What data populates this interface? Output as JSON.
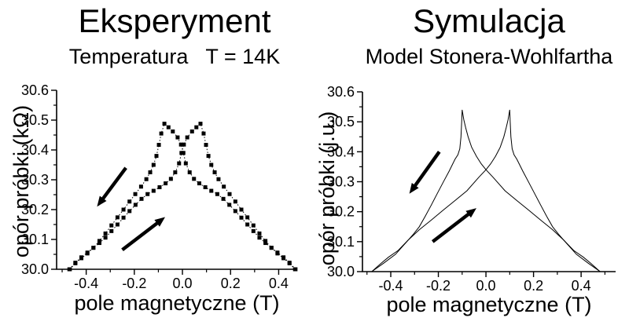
{
  "figure": {
    "background": "#ffffff",
    "foreground": "#000000"
  },
  "experiment": {
    "title": "Eksperyment",
    "subtitle": "Temperatura   T = 14K",
    "xlabel": "pole magnetyczne (T)",
    "ylabel": "opór próbki (kΩ)"
  },
  "simulation": {
    "title": "Symulacja",
    "subtitle": "Model Stonera-Wohlfartha",
    "xlabel": "pole magnetyczne (T)",
    "ylabel": "opór próbki (j.u.)"
  },
  "chart_data": [
    {
      "id": "experiment",
      "type": "line",
      "title": "Eksperyment",
      "subtitle": "Temperatura   T = 14K",
      "xlabel": "pole magnetyczne (T)",
      "ylabel": "opór próbki (kΩ)",
      "xlim": [
        -0.523,
        0.477
      ],
      "ylim": [
        30.0,
        30.6
      ],
      "x_major_ticks": [
        -0.4,
        -0.2,
        0.0,
        0.2,
        0.4
      ],
      "x_tick_labels": [
        "-0.4",
        "-0.2",
        "0.0",
        "0.2",
        "0.4"
      ],
      "y_major_ticks": [
        30.0,
        30.1,
        30.2,
        30.3,
        30.4,
        30.5,
        30.6
      ],
      "y_tick_labels": [
        "30.0",
        "30.1",
        "30.2",
        "30.3",
        "30.4",
        "30.5",
        "30.6"
      ],
      "x_minor_step": 0.1,
      "y_minor_step": 0.05,
      "grid": false,
      "line_color": "#000000",
      "marker": "square",
      "line_dotted": true,
      "series": [
        {
          "name": "sweep-up",
          "points": [
            [
              -0.47,
              30.0
            ],
            [
              -0.445,
              30.022
            ],
            [
              -0.42,
              30.04
            ],
            [
              -0.395,
              30.056
            ],
            [
              -0.37,
              30.072
            ],
            [
              -0.345,
              30.088
            ],
            [
              -0.32,
              30.106
            ],
            [
              -0.295,
              30.128
            ],
            [
              -0.27,
              30.15
            ],
            [
              -0.245,
              30.173
            ],
            [
              -0.22,
              30.195
            ],
            [
              -0.195,
              30.216
            ],
            [
              -0.17,
              30.236
            ],
            [
              -0.145,
              30.252
            ],
            [
              -0.12,
              30.263
            ],
            [
              -0.095,
              30.275
            ],
            [
              -0.07,
              30.288
            ],
            [
              -0.048,
              30.303
            ],
            [
              -0.03,
              30.325
            ],
            [
              -0.014,
              30.355
            ],
            [
              -0.004,
              30.39
            ],
            [
              0.006,
              30.418
            ],
            [
              0.02,
              30.442
            ],
            [
              0.04,
              30.462
            ],
            [
              0.058,
              30.476
            ],
            [
              0.075,
              30.488
            ],
            [
              0.088,
              30.455
            ],
            [
              0.098,
              30.417
            ],
            [
              0.108,
              30.38
            ],
            [
              0.12,
              30.35
            ],
            [
              0.134,
              30.325
            ],
            [
              0.15,
              30.302
            ],
            [
              0.172,
              30.277
            ],
            [
              0.196,
              30.252
            ],
            [
              0.22,
              30.227
            ],
            [
              0.245,
              30.2
            ],
            [
              0.27,
              30.174
            ],
            [
              0.295,
              30.147
            ],
            [
              0.32,
              30.12
            ],
            [
              0.345,
              30.095
            ],
            [
              0.37,
              30.072
            ],
            [
              0.395,
              30.053
            ],
            [
              0.42,
              30.037
            ],
            [
              0.445,
              30.02
            ],
            [
              0.468,
              30.0
            ]
          ]
        },
        {
          "name": "sweep-down",
          "points": [
            [
              0.47,
              30.0
            ],
            [
              0.445,
              30.022
            ],
            [
              0.42,
              30.04
            ],
            [
              0.395,
              30.056
            ],
            [
              0.37,
              30.072
            ],
            [
              0.345,
              30.088
            ],
            [
              0.32,
              30.106
            ],
            [
              0.295,
              30.128
            ],
            [
              0.27,
              30.15
            ],
            [
              0.245,
              30.173
            ],
            [
              0.22,
              30.195
            ],
            [
              0.195,
              30.216
            ],
            [
              0.17,
              30.236
            ],
            [
              0.145,
              30.252
            ],
            [
              0.12,
              30.263
            ],
            [
              0.095,
              30.275
            ],
            [
              0.07,
              30.288
            ],
            [
              0.048,
              30.303
            ],
            [
              0.03,
              30.325
            ],
            [
              0.014,
              30.355
            ],
            [
              0.004,
              30.39
            ],
            [
              -0.006,
              30.418
            ],
            [
              -0.02,
              30.442
            ],
            [
              -0.04,
              30.462
            ],
            [
              -0.058,
              30.476
            ],
            [
              -0.075,
              30.488
            ],
            [
              -0.088,
              30.455
            ],
            [
              -0.098,
              30.417
            ],
            [
              -0.108,
              30.38
            ],
            [
              -0.12,
              30.35
            ],
            [
              -0.134,
              30.325
            ],
            [
              -0.15,
              30.302
            ],
            [
              -0.172,
              30.277
            ],
            [
              -0.196,
              30.252
            ],
            [
              -0.22,
              30.227
            ],
            [
              -0.245,
              30.2
            ],
            [
              -0.27,
              30.174
            ],
            [
              -0.295,
              30.147
            ],
            [
              -0.32,
              30.12
            ],
            [
              -0.345,
              30.095
            ],
            [
              -0.37,
              30.072
            ],
            [
              -0.395,
              30.053
            ],
            [
              -0.42,
              30.037
            ],
            [
              -0.445,
              30.02
            ],
            [
              -0.468,
              30.0
            ]
          ]
        }
      ],
      "arrows": [
        {
          "name": "sweep-down-direction",
          "from": [
            -0.235,
            30.34
          ],
          "to": [
            -0.355,
            30.21
          ]
        },
        {
          "name": "sweep-up-direction",
          "from": [
            -0.25,
            30.065
          ],
          "to": [
            -0.072,
            30.175
          ]
        }
      ]
    },
    {
      "id": "simulation",
      "type": "line",
      "title": "Symulacja",
      "subtitle": "Model Stonera-Wohlfartha",
      "xlabel": "pole magnetyczne (T)",
      "ylabel": "opór próbki (j.u.)",
      "xlim": [
        -0.519,
        0.545
      ],
      "ylim": [
        30.0,
        30.6
      ],
      "x_major_ticks": [
        -0.4,
        -0.2,
        0.0,
        0.2,
        0.4
      ],
      "x_tick_labels": [
        "-0.4",
        "-0.2",
        "0.0",
        "0.2",
        "0.4"
      ],
      "y_major_ticks": [
        30.0,
        30.1,
        30.2,
        30.3,
        30.4,
        30.5,
        30.6
      ],
      "y_tick_labels": [
        "30.0",
        "30.1",
        "30.2",
        "30.3",
        "30.4",
        "30.5",
        "30.6"
      ],
      "x_minor_step": 0.1,
      "y_minor_step": 0.05,
      "grid": false,
      "line_color": "#000000",
      "marker": "none",
      "line_dotted": false,
      "series": [
        {
          "name": "sweep-up",
          "points": [
            [
              -0.48,
              30.0
            ],
            [
              -0.43,
              30.028
            ],
            [
              -0.38,
              30.058
            ],
            [
              -0.327,
              30.105
            ],
            [
              -0.28,
              30.14
            ],
            [
              -0.23,
              30.172
            ],
            [
              -0.18,
              30.205
            ],
            [
              -0.13,
              30.237
            ],
            [
              -0.08,
              30.27
            ],
            [
              -0.03,
              30.315
            ],
            [
              0.0,
              30.34
            ],
            [
              0.02,
              30.36
            ],
            [
              0.04,
              30.385
            ],
            [
              0.06,
              30.415
            ],
            [
              0.075,
              30.45
            ],
            [
              0.085,
              30.48
            ],
            [
              0.093,
              30.507
            ],
            [
              0.1,
              30.54
            ],
            [
              0.102,
              30.5
            ],
            [
              0.105,
              30.45
            ],
            [
              0.11,
              30.41
            ],
            [
              0.118,
              30.39
            ],
            [
              0.13,
              30.375
            ],
            [
              0.155,
              30.335
            ],
            [
              0.18,
              30.298
            ],
            [
              0.205,
              30.26
            ],
            [
              0.23,
              30.222
            ],
            [
              0.255,
              30.185
            ],
            [
              0.28,
              30.15
            ],
            [
              0.305,
              30.125
            ],
            [
              0.327,
              30.105
            ],
            [
              0.37,
              30.07
            ],
            [
              0.41,
              30.048
            ],
            [
              0.44,
              30.028
            ],
            [
              0.48,
              30.0
            ]
          ]
        },
        {
          "name": "sweep-down",
          "points": [
            [
              0.48,
              30.0
            ],
            [
              0.43,
              30.028
            ],
            [
              0.38,
              30.058
            ],
            [
              0.327,
              30.105
            ],
            [
              0.28,
              30.14
            ],
            [
              0.23,
              30.172
            ],
            [
              0.18,
              30.205
            ],
            [
              0.13,
              30.237
            ],
            [
              0.08,
              30.27
            ],
            [
              0.03,
              30.315
            ],
            [
              0.0,
              30.34
            ],
            [
              -0.02,
              30.36
            ],
            [
              -0.04,
              30.385
            ],
            [
              -0.06,
              30.415
            ],
            [
              -0.075,
              30.45
            ],
            [
              -0.085,
              30.48
            ],
            [
              -0.093,
              30.507
            ],
            [
              -0.1,
              30.54
            ],
            [
              -0.102,
              30.5
            ],
            [
              -0.105,
              30.45
            ],
            [
              -0.11,
              30.41
            ],
            [
              -0.118,
              30.39
            ],
            [
              -0.13,
              30.375
            ],
            [
              -0.155,
              30.335
            ],
            [
              -0.18,
              30.298
            ],
            [
              -0.205,
              30.26
            ],
            [
              -0.23,
              30.222
            ],
            [
              -0.255,
              30.185
            ],
            [
              -0.28,
              30.15
            ],
            [
              -0.305,
              30.125
            ],
            [
              -0.327,
              30.105
            ],
            [
              -0.37,
              30.07
            ],
            [
              -0.41,
              30.048
            ],
            [
              -0.44,
              30.028
            ],
            [
              -0.48,
              30.0
            ]
          ]
        }
      ],
      "arrows": [
        {
          "name": "sweep-down-direction",
          "from": [
            -0.196,
            30.4
          ],
          "to": [
            -0.322,
            30.26
          ]
        },
        {
          "name": "sweep-up-direction",
          "from": [
            -0.224,
            30.1
          ],
          "to": [
            -0.04,
            30.212
          ]
        }
      ]
    }
  ]
}
